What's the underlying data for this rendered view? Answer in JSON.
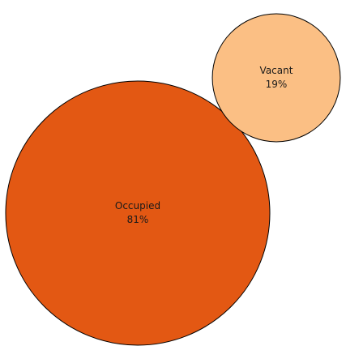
{
  "chart_data": {
    "type": "proportional-circles",
    "categories": [
      "Occupied",
      "Vacant"
    ],
    "values": [
      81,
      19
    ],
    "labels": [
      "81%",
      "19%"
    ],
    "colors": [
      "#e35813",
      "#fbbf84"
    ],
    "stroke_color": "#000000"
  }
}
